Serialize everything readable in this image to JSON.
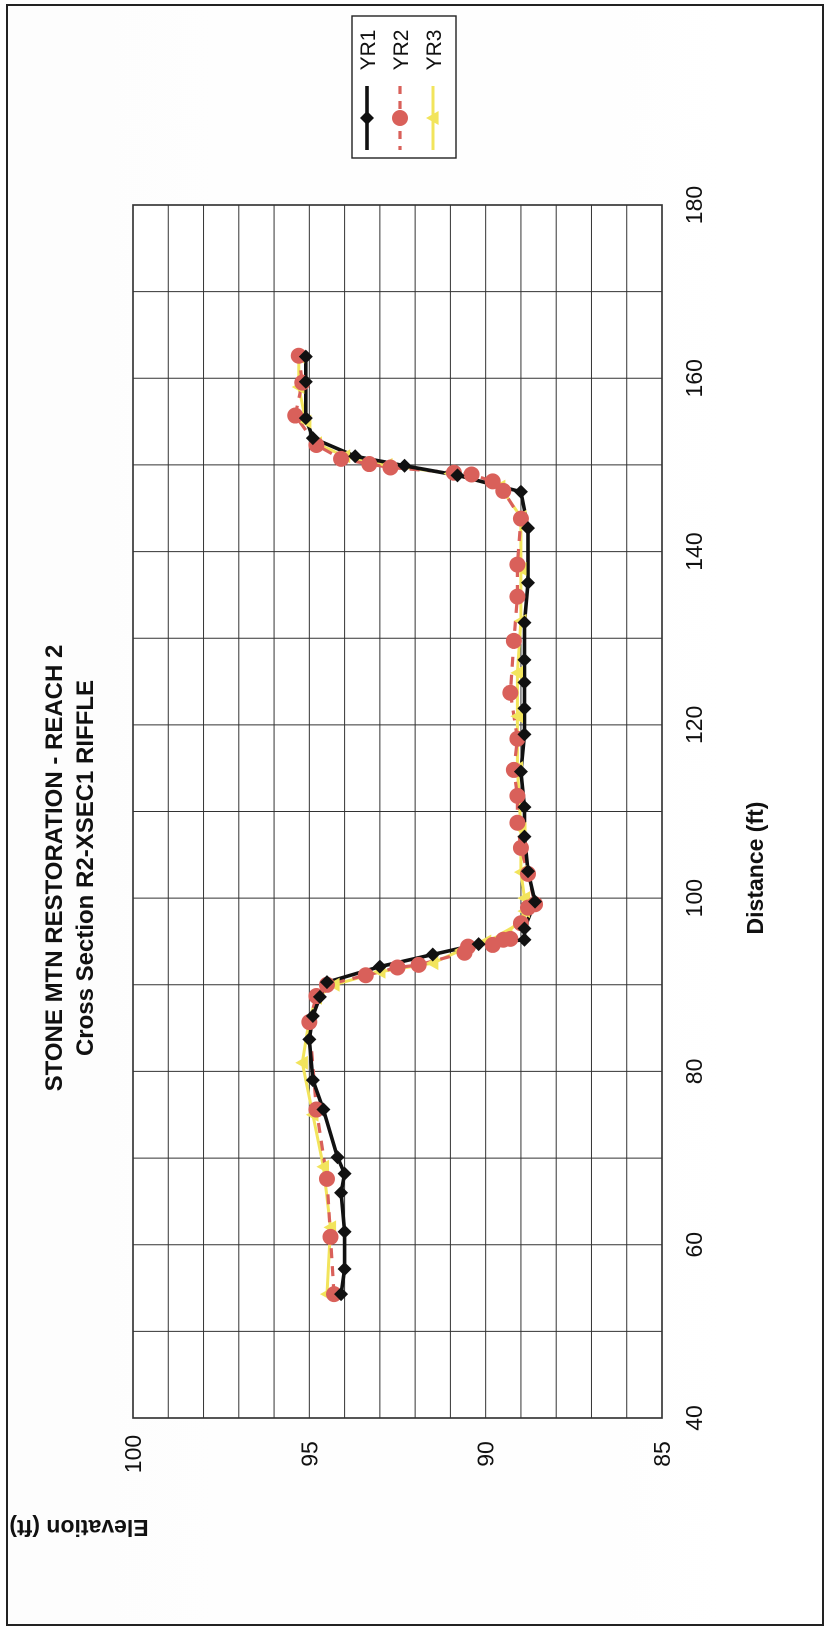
{
  "chart_data": {
    "type": "line",
    "title_line1": "STONE MTN RESTORATION - REACH 2",
    "title_line2": "Cross Section R2-XSEC1  RIFFLE",
    "xlabel": "Distance (ft)",
    "ylabel": "Elevation (ft)",
    "xlim": [
      40,
      180
    ],
    "ylim": [
      85,
      100
    ],
    "x_ticks": [
      "40",
      "60",
      "80",
      "100",
      "120",
      "140",
      "160",
      "180"
    ],
    "y_ticks": [
      "85",
      "90",
      "95",
      "100"
    ],
    "x_grid_step": 10,
    "y_grid_step": 1,
    "grid": true,
    "legend": "top-right",
    "orientation": "rotated 90 degrees counter-clockwise",
    "series": [
      {
        "name": "YR1",
        "color": "#111111",
        "marker": "diamond",
        "x": [
          54.3,
          57.2,
          61.5,
          66.0,
          68.2,
          70.1,
          75.6,
          79.0,
          83.7,
          86.4,
          88.6,
          90.3,
          92.1,
          93.5,
          94.7,
          95.2,
          96.5,
          99.6,
          103.1,
          107.1,
          110.5,
          114.6,
          118.9,
          121.9,
          124.9,
          127.5,
          131.8,
          136.4,
          142.7,
          146.9,
          148.8,
          149.9,
          151.0,
          153.1,
          155.4,
          159.6,
          162.5
        ],
        "y": [
          94.1,
          94.0,
          94.0,
          94.1,
          94.0,
          94.2,
          94.6,
          94.9,
          95.0,
          94.9,
          94.7,
          94.5,
          93.0,
          91.5,
          90.2,
          88.9,
          88.9,
          88.6,
          88.8,
          88.9,
          88.9,
          89.0,
          88.9,
          88.9,
          88.9,
          88.9,
          88.9,
          88.8,
          88.8,
          89.0,
          90.8,
          92.3,
          93.7,
          94.9,
          95.1,
          95.1,
          95.1
        ]
      },
      {
        "name": "YR2",
        "color": "#d9605a",
        "marker": "circle",
        "x": [
          54.3,
          60.9,
          67.6,
          75.6,
          85.7,
          88.7,
          90.0,
          91.1,
          92.0,
          92.3,
          93.7,
          94.4,
          94.6,
          95.2,
          95.3,
          97.1,
          98.9,
          99.3,
          102.8,
          105.8,
          108.7,
          111.8,
          114.8,
          118.4,
          123.7,
          129.7,
          134.8,
          138.5,
          143.8,
          147.0,
          148.1,
          148.9,
          149.1,
          149.7,
          150.1,
          150.7,
          152.3,
          155.7,
          159.5,
          162.6
        ],
        "y": [
          94.3,
          94.4,
          94.5,
          94.8,
          95.0,
          94.8,
          94.5,
          93.4,
          92.5,
          91.9,
          90.6,
          90.5,
          89.8,
          89.5,
          89.3,
          89.0,
          88.8,
          88.6,
          88.8,
          89.0,
          89.1,
          89.1,
          89.2,
          89.1,
          89.3,
          89.2,
          89.1,
          89.1,
          89.0,
          89.5,
          89.8,
          90.4,
          90.9,
          92.7,
          93.3,
          94.1,
          94.8,
          95.4,
          95.2,
          95.3
        ]
      },
      {
        "name": "YR3",
        "color": "#f2e45c",
        "marker": "triangle",
        "x": [
          54.3,
          62.0,
          69.0,
          75.0,
          81.0,
          86.0,
          88.5,
          90.0,
          91.5,
          92.5,
          94.0,
          95.0,
          96.0,
          97.5,
          98.5,
          100.0,
          103.0,
          108.0,
          115.0,
          121.0,
          126.0,
          132.0,
          138.0,
          144.0,
          147.5,
          149.0,
          150.0,
          151.0,
          152.5,
          155.0,
          159.0,
          162.5
        ],
        "y": [
          94.5,
          94.4,
          94.6,
          94.9,
          95.2,
          95.0,
          94.8,
          94.3,
          93.0,
          91.5,
          90.7,
          90.0,
          89.4,
          89.0,
          88.9,
          88.9,
          89.0,
          89.0,
          89.1,
          89.1,
          89.1,
          89.0,
          89.0,
          89.0,
          89.6,
          91.0,
          92.8,
          94.0,
          94.8,
          95.1,
          95.3,
          95.3
        ]
      }
    ]
  }
}
